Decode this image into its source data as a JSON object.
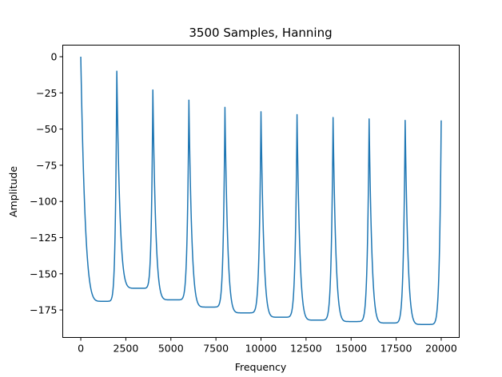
{
  "chart_data": {
    "type": "line",
    "title": "3500 Samples, Hanning",
    "xlabel": "Frequency",
    "ylabel": "Amplitude",
    "xlim": [
      -1000,
      21000
    ],
    "ylim": [
      -194,
      8
    ],
    "xticks": [
      0,
      2500,
      5000,
      7500,
      10000,
      12500,
      15000,
      17500,
      20000
    ],
    "xtick_labels": [
      "0",
      "2500",
      "5000",
      "7500",
      "10000",
      "12500",
      "15000",
      "17500",
      "20000"
    ],
    "yticks": [
      0,
      -25,
      -50,
      -75,
      -100,
      -125,
      -150,
      -175
    ],
    "ytick_labels": [
      "0",
      "−25",
      "−50",
      "−75",
      "−100",
      "−125",
      "−150",
      "−175"
    ],
    "grid": false,
    "series": [
      {
        "color": "#1f77b4",
        "peaks": [
          {
            "x": 0,
            "y": 0
          },
          {
            "x": 2000,
            "y": -10
          },
          {
            "x": 4000,
            "y": -23
          },
          {
            "x": 6000,
            "y": -30
          },
          {
            "x": 8000,
            "y": -35
          },
          {
            "x": 10000,
            "y": -38
          },
          {
            "x": 12000,
            "y": -40
          },
          {
            "x": 14000,
            "y": -42
          },
          {
            "x": 16000,
            "y": -43
          },
          {
            "x": 18000,
            "y": -44
          },
          {
            "x": 20000,
            "y": -44
          }
        ],
        "troughs": [
          {
            "x": 1250,
            "y": -169
          },
          {
            "x": 3250,
            "y": -160
          },
          {
            "x": 5150,
            "y": -168
          },
          {
            "x": 7150,
            "y": -173
          },
          {
            "x": 9100,
            "y": -177
          },
          {
            "x": 11100,
            "y": -180
          },
          {
            "x": 13100,
            "y": -182
          },
          {
            "x": 15100,
            "y": -183
          },
          {
            "x": 17100,
            "y": -184
          },
          {
            "x": 19100,
            "y": -185
          }
        ]
      }
    ]
  }
}
